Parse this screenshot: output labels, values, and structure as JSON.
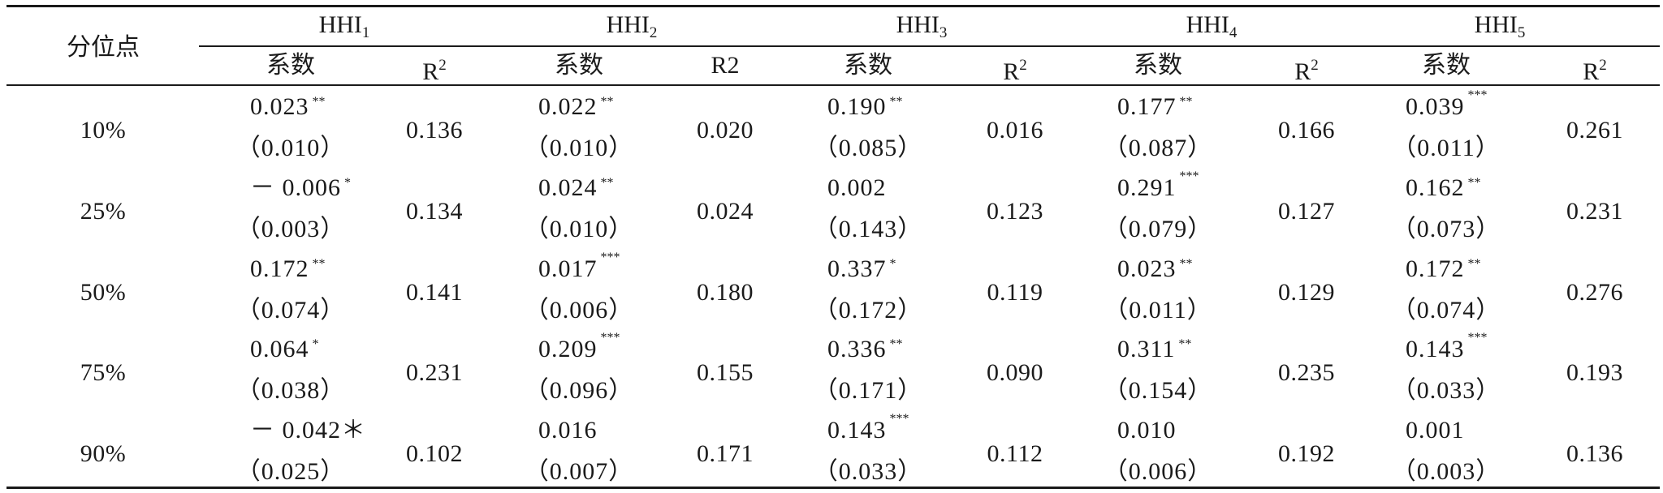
{
  "table": {
    "quantile_header": "分位点",
    "groups": [
      "HHI",
      "HHI",
      "HHI",
      "HHI",
      "HHI"
    ],
    "group_subs": [
      "1",
      "2",
      "3",
      "4",
      "5"
    ],
    "coef_label": "系数",
    "r2_labels": [
      "R",
      "R2",
      "R",
      "R",
      "R"
    ],
    "r2_sups": [
      "2",
      "",
      "2",
      "2",
      "2"
    ],
    "rows": [
      {
        "quantile": "10%",
        "cells": [
          {
            "coef": "0.023",
            "sig": "**",
            "se": "（0.010）",
            "r2": "0.136"
          },
          {
            "coef": "0.022",
            "sig": "**",
            "se": "（0.010）",
            "r2": "0.020"
          },
          {
            "coef": "0.190",
            "sig": "**",
            "se": "（0.085）",
            "r2": "0.016"
          },
          {
            "coef": "0.177",
            "sig": "**",
            "se": "（0.087）",
            "r2": "0.166"
          },
          {
            "coef": "0.039",
            "sig": "***",
            "se": "（0.011）",
            "r2": "0.261"
          }
        ]
      },
      {
        "quantile": "25%",
        "cells": [
          {
            "coef": "－ 0.006",
            "sig": "*",
            "se": "（0.003）",
            "r2": "0.134"
          },
          {
            "coef": "0.024",
            "sig": "**",
            "se": "（0.010）",
            "r2": "0.024"
          },
          {
            "coef": "0.002",
            "sig": "",
            "se": "（0.143）",
            "r2": "0.123"
          },
          {
            "coef": "0.291",
            "sig": "***",
            "se": "（0.079）",
            "r2": "0.127"
          },
          {
            "coef": "0.162",
            "sig": "**",
            "se": "（0.073）",
            "r2": "0.231"
          }
        ]
      },
      {
        "quantile": "50%",
        "cells": [
          {
            "coef": "0.172",
            "sig": "**",
            "se": "（0.074）",
            "r2": "0.141"
          },
          {
            "coef": "0.017",
            "sig": "***",
            "se": "（0.006）",
            "r2": "0.180"
          },
          {
            "coef": "0.337",
            "sig": "*",
            "se": "（0.172）",
            "r2": "0.119"
          },
          {
            "coef": "0.023",
            "sig": "**",
            "se": "（0.011）",
            "r2": "0.129"
          },
          {
            "coef": "0.172",
            "sig": "**",
            "se": "（0.074）",
            "r2": "0.276"
          }
        ]
      },
      {
        "quantile": "75%",
        "cells": [
          {
            "coef": "0.064",
            "sig": "*",
            "se": "（0.038）",
            "r2": "0.231"
          },
          {
            "coef": "0.209",
            "sig": "***",
            "se": "（0.096）",
            "r2": "0.155"
          },
          {
            "coef": "0.336",
            "sig": "**",
            "se": "（0.171）",
            "r2": "0.090"
          },
          {
            "coef": "0.311",
            "sig": "**",
            "se": "（0.154）",
            "r2": "0.235"
          },
          {
            "coef": "0.143",
            "sig": "***",
            "se": "（0.033）",
            "r2": "0.193"
          }
        ]
      },
      {
        "quantile": "90%",
        "cells": [
          {
            "coef": "－ 0.042＊",
            "sig": "",
            "se": "（0.025）",
            "r2": "0.102"
          },
          {
            "coef": "0.016",
            "sig": "",
            "se": "（0.007）",
            "r2": "0.171"
          },
          {
            "coef": "0.143",
            "sig": "***",
            "se": "（0.033）",
            "r2": "0.112"
          },
          {
            "coef": "0.010",
            "sig": "",
            "se": "（0.006）",
            "r2": "0.192"
          },
          {
            "coef": "0.001",
            "sig": "",
            "se": "（0.003）",
            "r2": "0.136"
          }
        ]
      }
    ]
  }
}
